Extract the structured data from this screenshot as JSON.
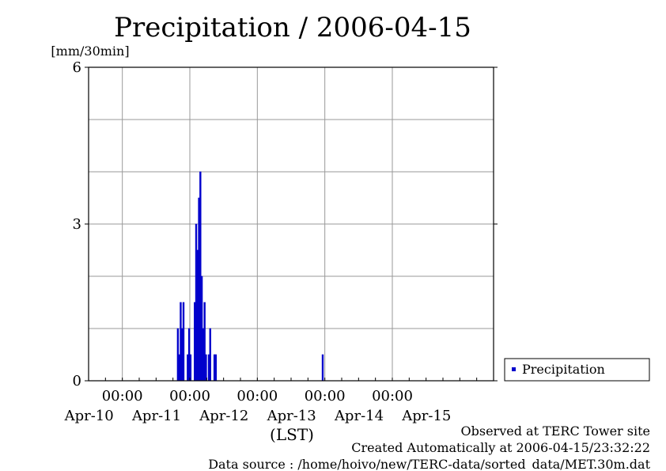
{
  "chart_data": {
    "type": "bar",
    "title": "Precipitation / 2006-04-15",
    "ylabel": "[mm/30min]",
    "xlabel": "(LST)",
    "ylim": [
      0,
      6
    ],
    "yticks": [
      0,
      3,
      6
    ],
    "xlim": [
      "2006-04-09T12:00",
      "2006-04-15T12:00"
    ],
    "xticks": [
      {
        "time": "2006-04-10T00:00",
        "label": "00:00",
        "date": "Apr-10"
      },
      {
        "time": "2006-04-11T00:00",
        "label": "00:00",
        "date": "Apr-11"
      },
      {
        "time": "2006-04-12T00:00",
        "label": "00:00",
        "date": "Apr-12"
      },
      {
        "time": "2006-04-13T00:00",
        "label": "00:00",
        "date": "Apr-13"
      },
      {
        "time": "2006-04-14T00:00",
        "label": "00:00",
        "date": "Apr-14"
      }
    ],
    "date_labels": [
      "Apr-10",
      "Apr-11",
      "Apr-12",
      "Apr-13",
      "Apr-14",
      "Apr-15"
    ],
    "grid": true,
    "legend_position": "right",
    "series": [
      {
        "name": "Precipitation",
        "color": "#0000cc",
        "points": [
          {
            "x": "2006-04-10T20:00",
            "y": 1.0
          },
          {
            "x": "2006-04-10T20:30",
            "y": 0.5
          },
          {
            "x": "2006-04-10T21:00",
            "y": 1.5
          },
          {
            "x": "2006-04-10T21:30",
            "y": 1.0
          },
          {
            "x": "2006-04-10T22:00",
            "y": 1.5
          },
          {
            "x": "2006-04-10T23:30",
            "y": 0.5
          },
          {
            "x": "2006-04-11T00:00",
            "y": 1.0
          },
          {
            "x": "2006-04-11T00:30",
            "y": 0.5
          },
          {
            "x": "2006-04-11T02:00",
            "y": 1.5
          },
          {
            "x": "2006-04-11T02:30",
            "y": 3.0
          },
          {
            "x": "2006-04-11T03:00",
            "y": 2.5
          },
          {
            "x": "2006-04-11T03:30",
            "y": 3.5
          },
          {
            "x": "2006-04-11T04:00",
            "y": 4.0
          },
          {
            "x": "2006-04-11T04:30",
            "y": 2.0
          },
          {
            "x": "2006-04-11T05:00",
            "y": 1.0
          },
          {
            "x": "2006-04-11T05:30",
            "y": 1.5
          },
          {
            "x": "2006-04-11T06:00",
            "y": 0.5
          },
          {
            "x": "2006-04-11T07:00",
            "y": 0.5
          },
          {
            "x": "2006-04-11T07:30",
            "y": 1.0
          },
          {
            "x": "2006-04-11T09:00",
            "y": 0.5
          },
          {
            "x": "2006-04-11T09:30",
            "y": 0.5
          },
          {
            "x": "2006-04-12T23:30",
            "y": 0.5
          }
        ]
      }
    ]
  },
  "footer": {
    "line1": "Observed at TERC Tower site",
    "line2": "Created Automatically at 2006-04-15/23:32:22",
    "line3": "Data source : /home/hoivo/new/TERC-data/sorted_data/MET.30m.dat"
  },
  "colors": {
    "bar": "#0000cc",
    "grid": "#999999",
    "axis": "#000000"
  }
}
